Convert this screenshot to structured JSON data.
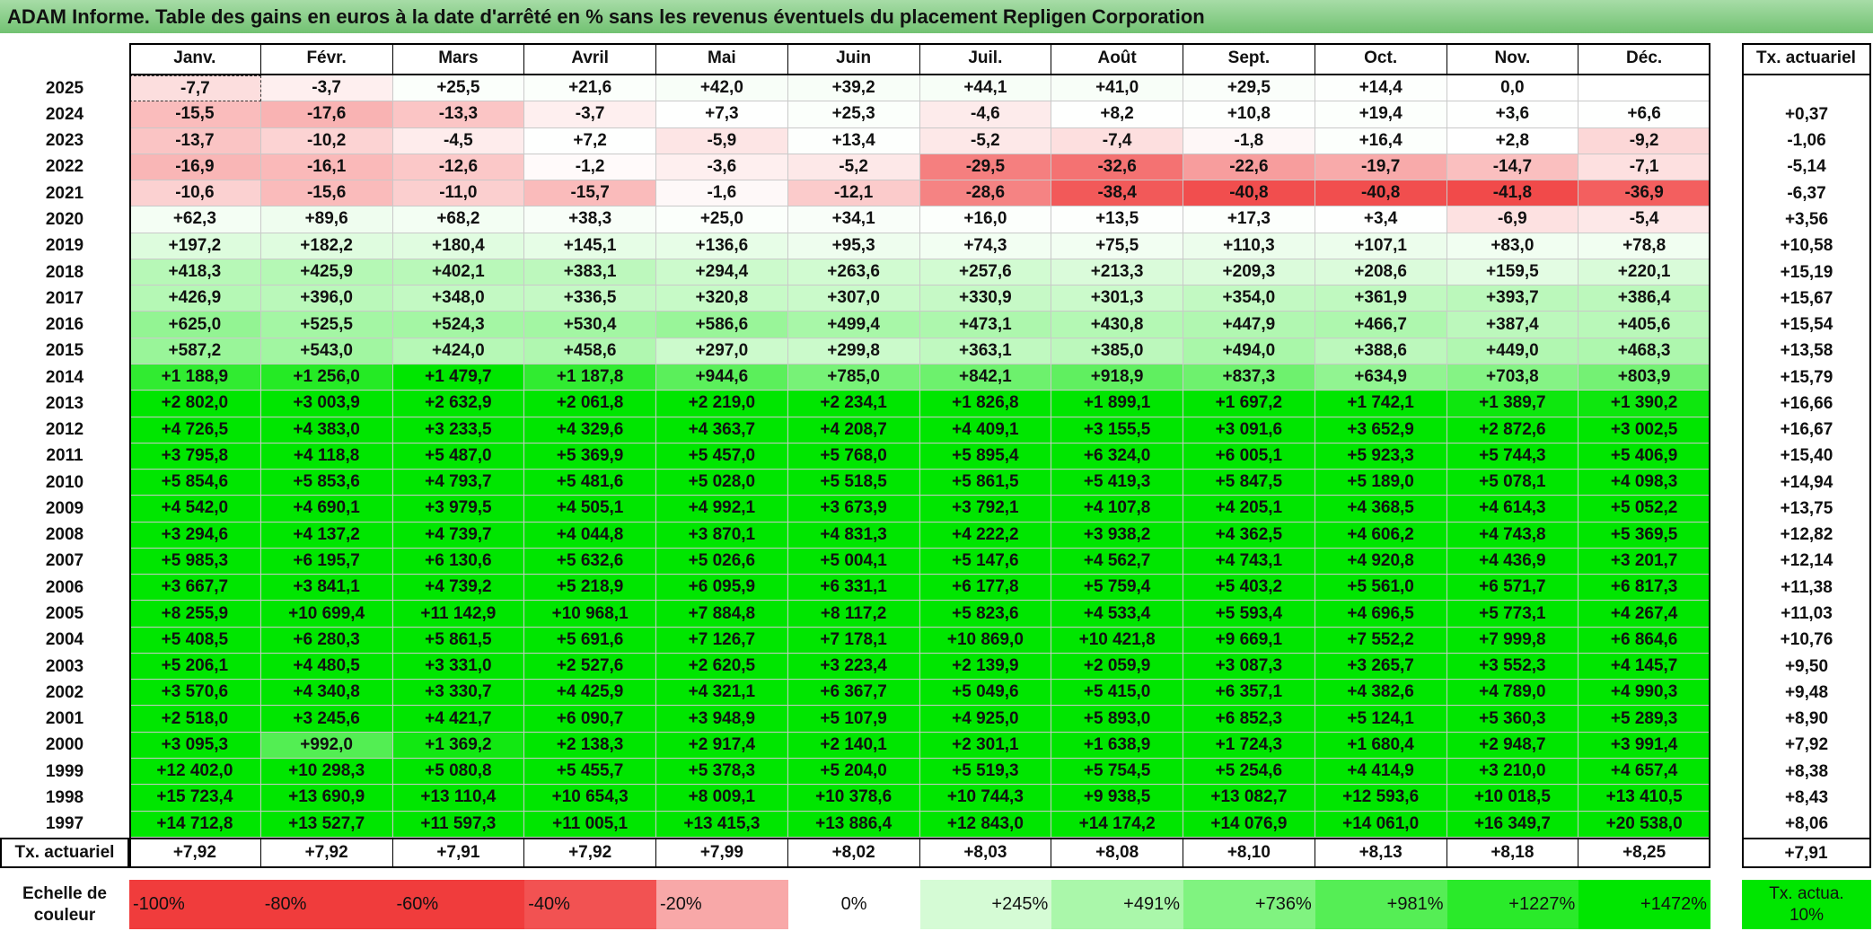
{
  "title": "ADAM Informe. Table des gains en euros à la date d'arrêté en % sans les revenus éventuels du placement Repligen Corporation",
  "table": {
    "columns": [
      "Janv.",
      "Févr.",
      "Mars",
      "Avril",
      "Mai",
      "Juin",
      "Juil.",
      "Août",
      "Sept.",
      "Oct.",
      "Nov.",
      "Déc."
    ],
    "tx_header": "Tx. actuariel",
    "rows": [
      {
        "year": "2025",
        "cells": [
          "-7,7",
          "-3,7",
          "+25,5",
          "+21,6",
          "+42,0",
          "+39,2",
          "+44,1",
          "+41,0",
          "+29,5",
          "+14,4",
          "0,0",
          null
        ],
        "tx": null
      },
      {
        "year": "2024",
        "cells": [
          "-15,5",
          "-17,6",
          "-13,3",
          "-3,7",
          "+7,3",
          "+25,3",
          "-4,6",
          "+8,2",
          "+10,8",
          "+19,4",
          "+3,6",
          "+6,6"
        ],
        "tx": "+0,37"
      },
      {
        "year": "2023",
        "cells": [
          "-13,7",
          "-10,2",
          "-4,5",
          "+7,2",
          "-5,9",
          "+13,4",
          "-5,2",
          "-7,4",
          "-1,8",
          "+16,4",
          "+2,8",
          "-9,2"
        ],
        "tx": "-1,06"
      },
      {
        "year": "2022",
        "cells": [
          "-16,9",
          "-16,1",
          "-12,6",
          "-1,2",
          "-3,6",
          "-5,2",
          "-29,5",
          "-32,6",
          "-22,6",
          "-19,7",
          "-14,7",
          "-7,1"
        ],
        "tx": "-5,14"
      },
      {
        "year": "2021",
        "cells": [
          "-10,6",
          "-15,6",
          "-11,0",
          "-15,7",
          "-1,6",
          "-12,1",
          "-28,6",
          "-38,4",
          "-40,8",
          "-40,8",
          "-41,8",
          "-36,9"
        ],
        "tx": "-6,37"
      },
      {
        "year": "2020",
        "cells": [
          "+62,3",
          "+89,6",
          "+68,2",
          "+38,3",
          "+25,0",
          "+34,1",
          "+16,0",
          "+13,5",
          "+17,3",
          "+3,4",
          "-6,9",
          "-5,4"
        ],
        "tx": "+3,56"
      },
      {
        "year": "2019",
        "cells": [
          "+197,2",
          "+182,2",
          "+180,4",
          "+145,1",
          "+136,6",
          "+95,3",
          "+74,3",
          "+75,5",
          "+110,3",
          "+107,1",
          "+83,0",
          "+78,8"
        ],
        "tx": "+10,58"
      },
      {
        "year": "2018",
        "cells": [
          "+418,3",
          "+425,9",
          "+402,1",
          "+383,1",
          "+294,4",
          "+263,6",
          "+257,6",
          "+213,3",
          "+209,3",
          "+208,6",
          "+159,5",
          "+220,1"
        ],
        "tx": "+15,19"
      },
      {
        "year": "2017",
        "cells": [
          "+426,9",
          "+396,0",
          "+348,0",
          "+336,5",
          "+320,8",
          "+307,0",
          "+330,9",
          "+301,3",
          "+354,0",
          "+361,9",
          "+393,7",
          "+386,4"
        ],
        "tx": "+15,67"
      },
      {
        "year": "2016",
        "cells": [
          "+625,0",
          "+525,5",
          "+524,3",
          "+530,4",
          "+586,6",
          "+499,4",
          "+473,1",
          "+430,8",
          "+447,9",
          "+466,7",
          "+387,4",
          "+405,6"
        ],
        "tx": "+15,54"
      },
      {
        "year": "2015",
        "cells": [
          "+587,2",
          "+543,0",
          "+424,0",
          "+458,6",
          "+297,0",
          "+299,8",
          "+363,1",
          "+385,0",
          "+494,0",
          "+388,6",
          "+449,0",
          "+468,3"
        ],
        "tx": "+13,58"
      },
      {
        "year": "2014",
        "cells": [
          "+1 188,9",
          "+1 256,0",
          "+1 479,7",
          "+1 187,8",
          "+944,6",
          "+785,0",
          "+842,1",
          "+918,9",
          "+837,3",
          "+634,9",
          "+703,8",
          "+803,9"
        ],
        "tx": "+15,79"
      },
      {
        "year": "2013",
        "cells": [
          "+2 802,0",
          "+3 003,9",
          "+2 632,9",
          "+2 061,8",
          "+2 219,0",
          "+2 234,1",
          "+1 826,8",
          "+1 899,1",
          "+1 697,2",
          "+1 742,1",
          "+1 389,7",
          "+1 390,2"
        ],
        "tx": "+16,66"
      },
      {
        "year": "2012",
        "cells": [
          "+4 726,5",
          "+4 383,0",
          "+3 233,5",
          "+4 329,6",
          "+4 363,7",
          "+4 208,7",
          "+4 409,1",
          "+3 155,5",
          "+3 091,6",
          "+3 652,9",
          "+2 872,6",
          "+3 002,5"
        ],
        "tx": "+16,67"
      },
      {
        "year": "2011",
        "cells": [
          "+3 795,8",
          "+4 118,8",
          "+5 487,0",
          "+5 369,9",
          "+5 457,0",
          "+5 768,0",
          "+5 895,4",
          "+6 324,0",
          "+6 005,1",
          "+5 923,3",
          "+5 744,3",
          "+5 406,9"
        ],
        "tx": "+15,40"
      },
      {
        "year": "2010",
        "cells": [
          "+5 854,6",
          "+5 853,6",
          "+4 793,7",
          "+5 481,6",
          "+5 028,0",
          "+5 518,5",
          "+5 861,5",
          "+5 419,3",
          "+5 847,5",
          "+5 189,0",
          "+5 078,1",
          "+4 098,3"
        ],
        "tx": "+14,94"
      },
      {
        "year": "2009",
        "cells": [
          "+4 542,0",
          "+4 690,1",
          "+3 979,5",
          "+4 505,1",
          "+4 992,1",
          "+3 673,9",
          "+3 792,1",
          "+4 107,8",
          "+4 205,1",
          "+4 368,5",
          "+4 614,3",
          "+5 052,2"
        ],
        "tx": "+13,75"
      },
      {
        "year": "2008",
        "cells": [
          "+3 294,6",
          "+4 137,2",
          "+4 739,7",
          "+4 044,8",
          "+3 870,1",
          "+4 831,3",
          "+4 222,2",
          "+3 938,2",
          "+4 362,5",
          "+4 606,2",
          "+4 743,8",
          "+5 369,5"
        ],
        "tx": "+12,82"
      },
      {
        "year": "2007",
        "cells": [
          "+5 985,3",
          "+6 195,7",
          "+6 130,6",
          "+5 632,6",
          "+5 026,6",
          "+5 004,1",
          "+5 147,6",
          "+4 562,7",
          "+4 743,1",
          "+4 920,8",
          "+4 436,9",
          "+3 201,7"
        ],
        "tx": "+12,14"
      },
      {
        "year": "2006",
        "cells": [
          "+3 667,7",
          "+3 841,1",
          "+4 739,2",
          "+5 218,9",
          "+6 095,9",
          "+6 331,1",
          "+6 177,8",
          "+5 759,4",
          "+5 403,2",
          "+5 561,0",
          "+6 571,7",
          "+6 817,3"
        ],
        "tx": "+11,38"
      },
      {
        "year": "2005",
        "cells": [
          "+8 255,9",
          "+10 699,4",
          "+11 142,9",
          "+10 968,1",
          "+7 884,8",
          "+8 117,2",
          "+5 823,6",
          "+4 533,4",
          "+5 593,4",
          "+4 696,5",
          "+5 773,1",
          "+4 267,4"
        ],
        "tx": "+11,03"
      },
      {
        "year": "2004",
        "cells": [
          "+5 408,5",
          "+6 280,3",
          "+5 861,5",
          "+5 691,6",
          "+7 126,7",
          "+7 178,1",
          "+10 869,0",
          "+10 421,8",
          "+9 669,1",
          "+7 552,2",
          "+7 999,8",
          "+6 864,6"
        ],
        "tx": "+10,76"
      },
      {
        "year": "2003",
        "cells": [
          "+5 206,1",
          "+4 480,5",
          "+3 331,0",
          "+2 527,6",
          "+2 620,5",
          "+3 223,4",
          "+2 139,9",
          "+2 059,9",
          "+3 087,3",
          "+3 265,7",
          "+3 552,3",
          "+4 145,7"
        ],
        "tx": "+9,50"
      },
      {
        "year": "2002",
        "cells": [
          "+3 570,6",
          "+4 340,8",
          "+3 330,7",
          "+4 425,9",
          "+4 321,1",
          "+6 367,7",
          "+5 049,6",
          "+5 415,0",
          "+6 357,1",
          "+4 382,6",
          "+4 789,0",
          "+4 990,3"
        ],
        "tx": "+9,48"
      },
      {
        "year": "2001",
        "cells": [
          "+2 518,0",
          "+3 245,6",
          "+4 421,7",
          "+6 090,7",
          "+3 948,9",
          "+5 107,9",
          "+4 925,0",
          "+5 893,0",
          "+6 852,3",
          "+5 124,1",
          "+5 360,3",
          "+5 289,3"
        ],
        "tx": "+8,90"
      },
      {
        "year": "2000",
        "cells": [
          "+3 095,3",
          "+992,0",
          "+1 369,2",
          "+2 138,3",
          "+2 917,4",
          "+2 140,1",
          "+2 301,1",
          "+1 638,9",
          "+1 724,3",
          "+1 680,4",
          "+2 948,7",
          "+3 991,4"
        ],
        "tx": "+7,92"
      },
      {
        "year": "1999",
        "cells": [
          "+12 402,0",
          "+10 298,3",
          "+5 080,8",
          "+5 455,7",
          "+5 378,3",
          "+5 204,0",
          "+5 519,3",
          "+5 754,5",
          "+5 254,6",
          "+4 414,9",
          "+3 210,0",
          "+4 657,4"
        ],
        "tx": "+8,38"
      },
      {
        "year": "1998",
        "cells": [
          "+15 723,4",
          "+13 690,9",
          "+13 110,4",
          "+10 654,3",
          "+8 009,1",
          "+10 378,6",
          "+10 744,3",
          "+9 938,5",
          "+13 082,7",
          "+12 593,6",
          "+10 018,5",
          "+13 410,5"
        ],
        "tx": "+8,43"
      },
      {
        "year": "1997",
        "cells": [
          "+14 712,8",
          "+13 527,7",
          "+11 597,3",
          "+11 005,1",
          "+13 415,3",
          "+13 886,4",
          "+12 843,0",
          "+14 174,2",
          "+14 076,9",
          "+14 061,0",
          "+16 349,7",
          "+20 538,0"
        ],
        "tx": "+8,06"
      }
    ],
    "footer": {
      "label": "Tx. actuariel",
      "cells": [
        "+7,92",
        "+7,92",
        "+7,91",
        "+7,92",
        "+7,99",
        "+8,02",
        "+8,03",
        "+8,08",
        "+8,10",
        "+8,13",
        "+8,18",
        "+8,25"
      ],
      "tx": "+7,91"
    }
  },
  "scale": {
    "label": "Echelle de couleur",
    "steps": [
      "-100%",
      "-80%",
      "-60%",
      "-40%",
      "-20%",
      "0%",
      "+245%",
      "+491%",
      "+736%",
      "+981%",
      "+1227%",
      "+1472%"
    ],
    "tx": "Tx. actua. 10%"
  }
}
